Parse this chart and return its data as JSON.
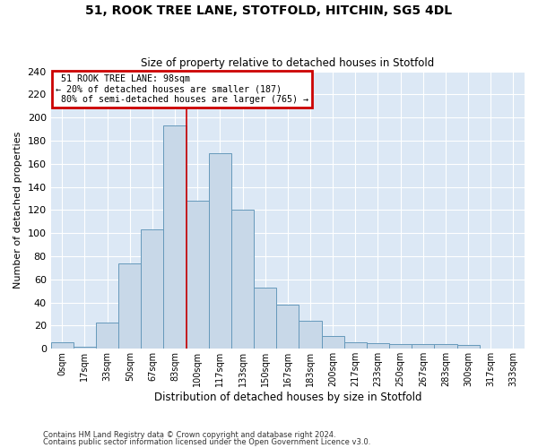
{
  "title": "51, ROOK TREE LANE, STOTFOLD, HITCHIN, SG5 4DL",
  "subtitle": "Size of property relative to detached houses in Stotfold",
  "xlabel": "Distribution of detached houses by size in Stotfold",
  "ylabel": "Number of detached properties",
  "bar_color": "#c8d8e8",
  "bar_edge_color": "#6699bb",
  "background_color": "#dce8f5",
  "annotation_box_color": "#cc0000",
  "categories": [
    "0sqm",
    "17sqm",
    "33sqm",
    "50sqm",
    "67sqm",
    "83sqm",
    "100sqm",
    "117sqm",
    "133sqm",
    "150sqm",
    "167sqm",
    "183sqm",
    "200sqm",
    "217sqm",
    "233sqm",
    "250sqm",
    "267sqm",
    "283sqm",
    "300sqm",
    "317sqm",
    "333sqm"
  ],
  "values": [
    6,
    2,
    23,
    74,
    103,
    193,
    128,
    169,
    120,
    53,
    38,
    24,
    11,
    6,
    5,
    4,
    4,
    4,
    3,
    0,
    0
  ],
  "property_label": "51 ROOK TREE LANE: 98sqm",
  "pct_smaller": "20% of detached houses are smaller (187)",
  "pct_larger": "80% of semi-detached houses are larger (765)",
  "vline_index": 6,
  "ylim": [
    0,
    240
  ],
  "yticks": [
    0,
    20,
    40,
    60,
    80,
    100,
    120,
    140,
    160,
    180,
    200,
    220,
    240
  ],
  "footnote1": "Contains HM Land Registry data © Crown copyright and database right 2024.",
  "footnote2": "Contains public sector information licensed under the Open Government Licence v3.0."
}
